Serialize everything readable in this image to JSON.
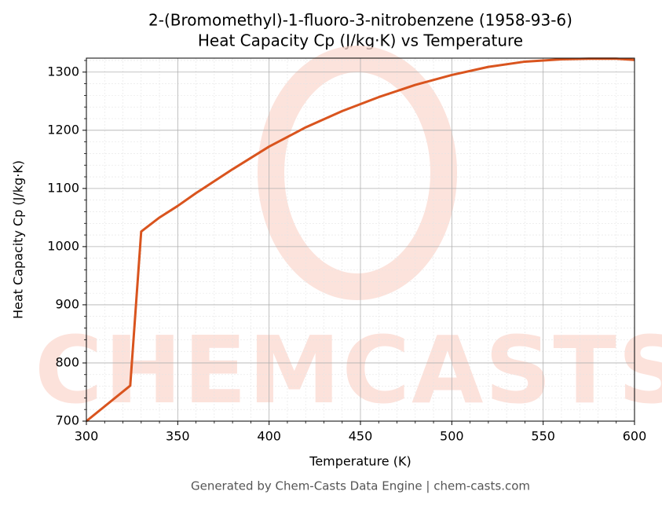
{
  "chart_data": {
    "type": "line",
    "title": "2-(Bromomethyl)-1-fluoro-3-nitrobenzene (1958-93-6)",
    "subtitle": "Heat Capacity Cp (J/kg·K) vs Temperature",
    "x_label": "Temperature (K)",
    "y_label": "Heat Capacity Cp (J/kg·K)",
    "footer": "Generated by Chem-Casts Data Engine | chem-casts.com",
    "watermark": "CHEMCASTS",
    "x": [
      300,
      324,
      330,
      340,
      350,
      360,
      380,
      400,
      420,
      440,
      450,
      460,
      480,
      500,
      520,
      540,
      550,
      560,
      575,
      590,
      600
    ],
    "series": [
      {
        "name": "Cp",
        "color": "#d9541e",
        "values": [
          700,
          761,
          1026,
          1050,
          1070,
          1092,
          1133,
          1172,
          1205,
          1233,
          1245,
          1257,
          1278,
          1295,
          1309,
          1318,
          1320,
          1322,
          1323,
          1323,
          1321
        ]
      }
    ],
    "xlim": [
      300,
      600
    ],
    "ylim": [
      700,
      1324
    ],
    "xticks": [
      300,
      350,
      400,
      450,
      500,
      550,
      600
    ],
    "yticks": [
      700,
      800,
      900,
      1000,
      1100,
      1200,
      1300
    ],
    "xminorticks": [
      310,
      320,
      330,
      340,
      360,
      370,
      380,
      390,
      410,
      420,
      430,
      440,
      460,
      470,
      480,
      490,
      510,
      520,
      530,
      540,
      560,
      570,
      580,
      590
    ],
    "yminorticks": [
      720,
      740,
      760,
      780,
      820,
      840,
      860,
      880,
      920,
      940,
      960,
      980,
      1020,
      1040,
      1060,
      1080,
      1120,
      1140,
      1160,
      1180,
      1220,
      1240,
      1260,
      1280,
      1320
    ],
    "grid": true,
    "minor_grid": true
  }
}
